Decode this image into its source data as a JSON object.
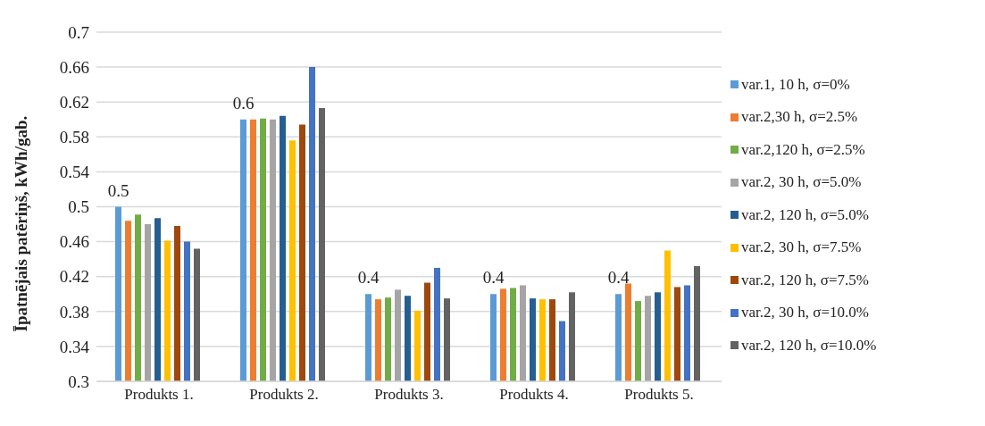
{
  "chart_data": {
    "type": "bar",
    "ylabel": "Īpatnējais patēriņš, kWh/gab.",
    "categories": [
      "Produkts 1.",
      "Produkts 2.",
      "Produkts 3.",
      "Produkts 4.",
      "Produkts 5."
    ],
    "series": [
      {
        "name": "var.1, 10 h, σ=0%",
        "color": "#5b9bd5",
        "values": [
          0.5,
          0.6,
          0.4,
          0.4,
          0.4
        ],
        "value_labels": [
          "0.5",
          "0.6",
          "0.4",
          "0.4",
          "0.4"
        ]
      },
      {
        "name": "var.2,30 h, σ=2.5%",
        "color": "#ed7d31",
        "values": [
          0.484,
          0.6,
          0.394,
          0.406,
          0.412
        ]
      },
      {
        "name": "var.2,120 h, σ=2.5%",
        "color": "#70ad47",
        "values": [
          0.491,
          0.601,
          0.396,
          0.407,
          0.392
        ]
      },
      {
        "name": "var.2, 30 h, σ=5.0%",
        "color": "#a5a5a5",
        "values": [
          0.48,
          0.6,
          0.405,
          0.41,
          0.398
        ]
      },
      {
        "name": "var.2, 120 h, σ=5.0%",
        "color": "#255e91",
        "values": [
          0.487,
          0.604,
          0.398,
          0.395,
          0.402
        ]
      },
      {
        "name": "var.2, 30 h, σ=7.5%",
        "color": "#ffc000",
        "values": [
          0.461,
          0.576,
          0.381,
          0.394,
          0.45
        ]
      },
      {
        "name": "var.2, 120 h, σ=7.5%",
        "color": "#9e480e",
        "values": [
          0.478,
          0.594,
          0.413,
          0.394,
          0.408
        ]
      },
      {
        "name": "var.2, 30 h, σ=10.0%",
        "color": "#4472c4",
        "values": [
          0.46,
          0.66,
          0.43,
          0.369,
          0.41
        ]
      },
      {
        "name": "var.2, 120 h, σ=10.0%",
        "color": "#636363",
        "values": [
          0.452,
          0.613,
          0.395,
          0.402,
          0.432
        ]
      }
    ],
    "ylim": [
      0.3,
      0.7
    ],
    "yticks": [
      0.3,
      0.34,
      0.38,
      0.42,
      0.46,
      0.5,
      0.54,
      0.58,
      0.62,
      0.66,
      0.7
    ],
    "grid": "y",
    "legend": "right"
  }
}
